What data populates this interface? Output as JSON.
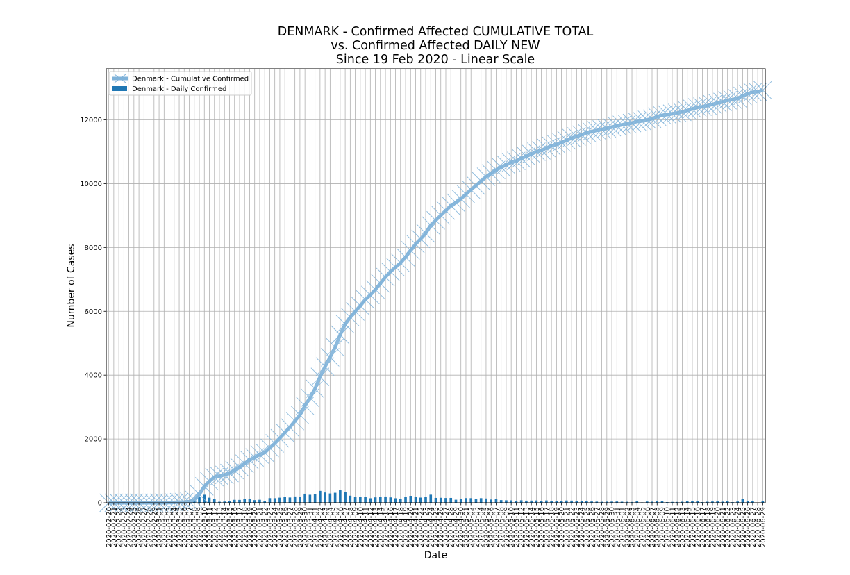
{
  "chart_data": {
    "type": "bar+line",
    "title_lines": [
      "DENMARK - Confirmed Affected CUMULATIVE TOTAL",
      "vs. Confirmed Affected DAILY NEW",
      "Since 19 Feb 2020 - Linear Scale"
    ],
    "xlabel": "Date",
    "ylabel": "Number of Cases",
    "ylim": [
      0,
      13600
    ],
    "yticks": [
      0,
      2000,
      4000,
      6000,
      8000,
      10000,
      12000
    ],
    "grid": true,
    "legend_position": "top-left",
    "x_start_label": "2020-02-20",
    "x_end_label": "2020-06-29",
    "x": [
      "2020-02-20",
      "2020-02-21",
      "2020-02-22",
      "2020-02-23",
      "2020-02-24",
      "2020-02-25",
      "2020-02-26",
      "2020-02-27",
      "2020-02-28",
      "2020-02-29",
      "2020-03-01",
      "2020-03-02",
      "2020-03-03",
      "2020-03-04",
      "2020-03-05",
      "2020-03-06",
      "2020-03-07",
      "2020-03-08",
      "2020-03-09",
      "2020-03-10",
      "2020-03-11",
      "2020-03-12",
      "2020-03-13",
      "2020-03-14",
      "2020-03-15",
      "2020-03-16",
      "2020-03-17",
      "2020-03-18",
      "2020-03-19",
      "2020-03-20",
      "2020-03-21",
      "2020-03-22",
      "2020-03-23",
      "2020-03-24",
      "2020-03-25",
      "2020-03-26",
      "2020-03-27",
      "2020-03-28",
      "2020-03-29",
      "2020-03-30",
      "2020-03-31",
      "2020-04-01",
      "2020-04-02",
      "2020-04-03",
      "2020-04-04",
      "2020-04-05",
      "2020-04-06",
      "2020-04-07",
      "2020-04-08",
      "2020-04-09",
      "2020-04-10",
      "2020-04-11",
      "2020-04-12",
      "2020-04-13",
      "2020-04-14",
      "2020-04-15",
      "2020-04-16",
      "2020-04-17",
      "2020-04-18",
      "2020-04-19",
      "2020-04-20",
      "2020-04-21",
      "2020-04-22",
      "2020-04-23",
      "2020-04-24",
      "2020-04-25",
      "2020-04-26",
      "2020-04-27",
      "2020-04-28",
      "2020-04-29",
      "2020-04-30",
      "2020-05-01",
      "2020-05-02",
      "2020-05-03",
      "2020-05-04",
      "2020-05-05",
      "2020-05-06",
      "2020-05-07",
      "2020-05-08",
      "2020-05-09",
      "2020-05-10",
      "2020-05-11",
      "2020-05-12",
      "2020-05-13",
      "2020-05-14",
      "2020-05-15",
      "2020-05-16",
      "2020-05-17",
      "2020-05-18",
      "2020-05-19",
      "2020-05-20",
      "2020-05-21",
      "2020-05-22",
      "2020-05-23",
      "2020-05-24",
      "2020-05-25",
      "2020-05-26",
      "2020-05-27",
      "2020-05-28",
      "2020-05-29",
      "2020-05-30",
      "2020-05-31",
      "2020-06-01",
      "2020-06-02",
      "2020-06-03",
      "2020-06-04",
      "2020-06-05",
      "2020-06-06",
      "2020-06-07",
      "2020-06-08",
      "2020-06-09",
      "2020-06-10",
      "2020-06-11",
      "2020-06-12",
      "2020-06-13",
      "2020-06-14",
      "2020-06-15",
      "2020-06-16",
      "2020-06-17",
      "2020-06-18",
      "2020-06-19",
      "2020-06-20",
      "2020-06-21",
      "2020-06-22",
      "2020-06-23",
      "2020-06-24",
      "2020-06-25",
      "2020-06-26",
      "2020-06-27",
      "2020-06-28",
      "2020-06-29"
    ],
    "series": [
      {
        "name": "Denmark - Cumulative Confirmed",
        "kind": "line",
        "color": "#7fb2d9",
        "values": [
          0,
          0,
          0,
          0,
          0,
          0,
          0,
          1,
          1,
          1,
          2,
          3,
          5,
          10,
          20,
          23,
          35,
          90,
          264,
          516,
          676,
          804,
          836,
          875,
          933,
          1025,
          1115,
          1225,
          1337,
          1420,
          1514,
          1572,
          1718,
          1862,
          2023,
          2200,
          2366,
          2564,
          2755,
          3039,
          3290,
          3573,
          3946,
          4269,
          4561,
          4875,
          5266,
          5597,
          5819,
          5996,
          6174,
          6369,
          6511,
          6681,
          6876,
          7073,
          7242,
          7384,
          7515,
          7695,
          7912,
          8108,
          8271,
          8445,
          8698,
          8851,
          9008,
          9158,
          9311,
          9407,
          9523,
          9670,
          9815,
          9938,
          10083,
          10218,
          10319,
          10429,
          10513,
          10591,
          10667,
          10713,
          10791,
          10858,
          10927,
          11000,
          11044,
          11117,
          11182,
          11230,
          11289,
          11360,
          11428,
          11480,
          11534,
          11593,
          11633,
          11669,
          11699,
          11734,
          11771,
          11811,
          11844,
          11875,
          11900,
          11948,
          11962,
          12001,
          12035,
          12099,
          12143,
          12164,
          12191,
          12217,
          12250,
          12294,
          12344,
          12391,
          12412,
          12445,
          12485,
          12527,
          12561,
          12615,
          12635,
          12675,
          12751,
          12815,
          12867,
          12878,
          12929
        ]
      },
      {
        "name": "Denmark - Daily Confirmed",
        "kind": "bar",
        "color": "#1f77b4",
        "values": [
          0,
          0,
          0,
          0,
          0,
          0,
          0,
          1,
          0,
          0,
          1,
          1,
          2,
          5,
          10,
          3,
          12,
          55,
          174,
          252,
          160,
          128,
          32,
          39,
          58,
          92,
          90,
          110,
          112,
          83,
          94,
          58,
          146,
          144,
          161,
          177,
          166,
          198,
          191,
          284,
          251,
          283,
          373,
          323,
          292,
          314,
          391,
          331,
          222,
          177,
          178,
          195,
          142,
          170,
          195,
          197,
          169,
          142,
          131,
          180,
          217,
          196,
          163,
          174,
          253,
          153,
          157,
          150,
          153,
          96,
          116,
          147,
          145,
          123,
          145,
          135,
          101,
          110,
          84,
          78,
          76,
          46,
          78,
          67,
          69,
          73,
          44,
          73,
          65,
          48,
          59,
          71,
          68,
          52,
          54,
          59,
          40,
          36,
          30,
          35,
          37,
          40,
          33,
          31,
          25,
          48,
          14,
          39,
          34,
          64,
          44,
          21,
          27,
          26,
          33,
          44,
          50,
          47,
          21,
          33,
          40,
          42,
          34,
          54,
          20,
          40,
          128,
          64,
          52,
          11,
          51
        ]
      }
    ]
  }
}
